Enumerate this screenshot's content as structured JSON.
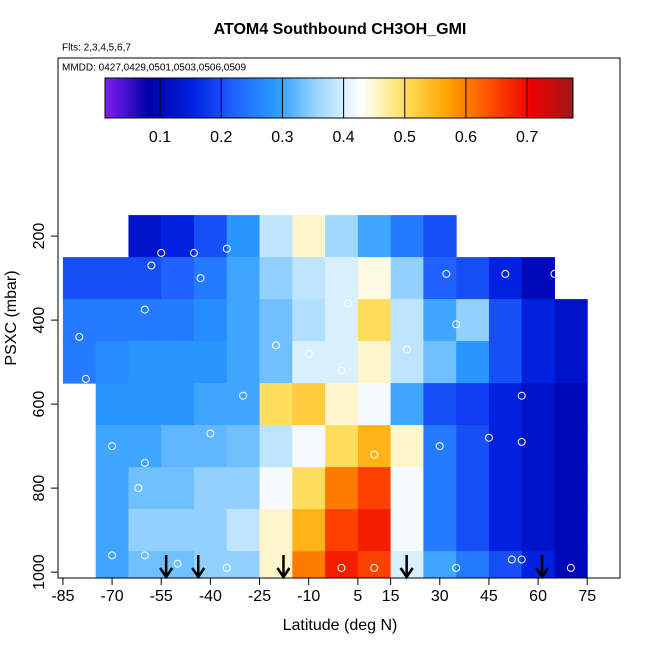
{
  "chart_data": {
    "type": "heatmap",
    "title": "ATOM4 Southbound CH3OH_GMI",
    "subtitle": "Flts: 2,3,4,5,6,7",
    "annotation": "MMDD: 0427,0429,0501,0503,0506,0509",
    "x_label": "Latitude (deg N)",
    "y_label": "PSXC (mbar)",
    "x": [
      -80,
      -70,
      -60,
      -50,
      -40,
      -30,
      -20,
      -10,
      0,
      10,
      20,
      30,
      40,
      50,
      60,
      70
    ],
    "y": [
      200,
      300,
      400,
      500,
      600,
      700,
      800,
      900,
      1000
    ],
    "values": [
      [
        null,
        null,
        0.12,
        0.15,
        0.2,
        0.28,
        0.38,
        0.45,
        0.36,
        0.3,
        0.25,
        0.2,
        null,
        null,
        null,
        null
      ],
      [
        0.2,
        0.2,
        0.2,
        0.22,
        0.25,
        0.3,
        0.35,
        0.38,
        0.4,
        0.44,
        0.35,
        0.22,
        0.2,
        0.15,
        0.1,
        null
      ],
      [
        0.25,
        0.25,
        0.25,
        0.25,
        0.27,
        0.3,
        0.33,
        0.37,
        0.4,
        0.5,
        0.38,
        0.3,
        0.35,
        0.2,
        0.15,
        0.12
      ],
      [
        0.25,
        0.27,
        0.28,
        0.28,
        0.28,
        0.3,
        0.33,
        0.4,
        0.4,
        0.45,
        0.38,
        0.33,
        0.28,
        0.2,
        0.15,
        0.12
      ],
      [
        null,
        0.28,
        0.28,
        0.28,
        0.3,
        0.3,
        0.5,
        0.52,
        0.45,
        0.42,
        0.3,
        0.2,
        0.18,
        0.15,
        0.12,
        0.1
      ],
      [
        null,
        0.3,
        0.3,
        0.32,
        0.32,
        0.33,
        0.38,
        0.42,
        0.5,
        0.55,
        0.45,
        0.25,
        0.2,
        0.15,
        0.12,
        0.1
      ],
      [
        null,
        0.3,
        0.33,
        0.33,
        0.35,
        0.35,
        0.42,
        0.5,
        0.6,
        0.65,
        0.42,
        0.25,
        0.2,
        0.15,
        0.12,
        0.1
      ],
      [
        null,
        0.3,
        0.35,
        0.35,
        0.35,
        0.38,
        0.45,
        0.55,
        0.65,
        0.68,
        0.42,
        0.25,
        0.2,
        0.15,
        0.12,
        0.1
      ],
      [
        null,
        0.3,
        0.33,
        0.33,
        0.35,
        0.35,
        0.45,
        0.6,
        0.68,
        0.65,
        0.4,
        0.3,
        0.25,
        0.2,
        0.15,
        0.1
      ]
    ],
    "xlim": [
      -86.5,
      85
    ],
    "ylim": [
      1014,
      -224
    ],
    "xticks": [
      -85,
      -70,
      -55,
      -40,
      -25,
      -10,
      5,
      15,
      30,
      45,
      60,
      75
    ],
    "yticks": [
      200,
      400,
      600,
      800,
      1000
    ],
    "colorbar_lim": [
      0.01,
      0.775
    ],
    "colorbar_ticks": [
      0.1,
      0.2,
      0.3,
      0.4,
      0.5,
      0.6,
      0.7
    ],
    "colormap": [
      "#7f1fef",
      "#0000a8",
      "#0020e0",
      "#2060ff",
      "#2a9cff",
      "#9fd8ff",
      "#ffffff",
      "#ffe060",
      "#ffa500",
      "#ff5000",
      "#ee0000",
      "#9e1a1a"
    ],
    "arrows_lat": [
      -53.5,
      -43.7,
      -17.7,
      19.9,
      61.2
    ],
    "points": {
      "x": [
        -84,
        -68,
        -55,
        -45,
        -35,
        -58,
        -43,
        -80,
        -78,
        -60,
        -70,
        -60,
        -62,
        -40,
        -70,
        -60,
        -50,
        -35,
        0,
        10,
        35,
        55,
        70,
        52,
        55,
        65,
        50,
        32,
        10,
        2,
        -20,
        0,
        20,
        30,
        45,
        55,
        -30,
        -10,
        35,
        10
      ],
      "y": [
        240,
        230,
        240,
        240,
        230,
        270,
        300,
        440,
        540,
        375,
        700,
        740,
        800,
        670,
        960,
        960,
        980,
        990,
        990,
        990,
        990,
        970,
        990,
        970,
        580,
        290,
        290,
        290,
        330,
        360,
        460,
        520,
        470,
        700,
        680,
        690,
        580,
        480,
        410,
        720
      ]
    }
  }
}
